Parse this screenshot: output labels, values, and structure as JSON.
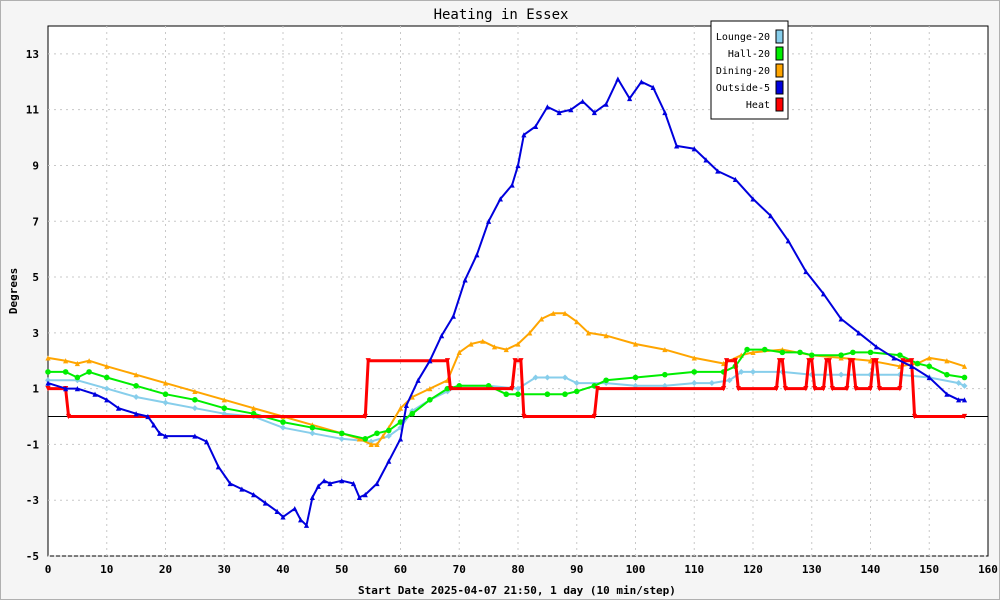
{
  "chart_data": {
    "type": "line",
    "title": "Heating in Essex",
    "xlabel": "Start Date 2025-04-07 21:50, 1 day (10 min/step)",
    "ylabel": "Degrees",
    "xlim": [
      0,
      160
    ],
    "ylim": [
      -5,
      14
    ],
    "xticks": [
      0,
      10,
      20,
      30,
      40,
      50,
      60,
      70,
      80,
      90,
      100,
      110,
      120,
      130,
      140,
      150,
      160
    ],
    "yticks": [
      -5,
      -3,
      -1,
      1,
      3,
      5,
      7,
      9,
      11,
      13
    ],
    "zero_line": 0,
    "grid": true,
    "legend_position": "top-right",
    "series": [
      {
        "name": "Lounge-20",
        "color": "#87ceeb",
        "marker": "diamond",
        "points": [
          [
            0,
            1.3
          ],
          [
            5,
            1.3
          ],
          [
            10,
            1.0
          ],
          [
            15,
            0.7
          ],
          [
            20,
            0.5
          ],
          [
            25,
            0.3
          ],
          [
            30,
            0.1
          ],
          [
            35,
            0.0
          ],
          [
            40,
            -0.4
          ],
          [
            45,
            -0.6
          ],
          [
            50,
            -0.8
          ],
          [
            55,
            -0.9
          ],
          [
            58,
            -0.7
          ],
          [
            60,
            -0.4
          ],
          [
            62,
            0.2
          ],
          [
            65,
            0.6
          ],
          [
            68,
            0.9
          ],
          [
            70,
            1.1
          ],
          [
            75,
            1.1
          ],
          [
            80,
            1.0
          ],
          [
            83,
            1.4
          ],
          [
            85,
            1.4
          ],
          [
            88,
            1.4
          ],
          [
            90,
            1.2
          ],
          [
            95,
            1.2
          ],
          [
            100,
            1.1
          ],
          [
            105,
            1.1
          ],
          [
            110,
            1.2
          ],
          [
            113,
            1.2
          ],
          [
            116,
            1.3
          ],
          [
            118,
            1.6
          ],
          [
            120,
            1.6
          ],
          [
            125,
            1.6
          ],
          [
            130,
            1.5
          ],
          [
            135,
            1.5
          ],
          [
            140,
            1.5
          ],
          [
            145,
            1.5
          ],
          [
            150,
            1.4
          ],
          [
            155,
            1.2
          ],
          [
            156,
            1.1
          ]
        ]
      },
      {
        "name": "Hall-20",
        "color": "#00ee00",
        "marker": "circle",
        "points": [
          [
            0,
            1.6
          ],
          [
            3,
            1.6
          ],
          [
            5,
            1.4
          ],
          [
            7,
            1.6
          ],
          [
            10,
            1.4
          ],
          [
            15,
            1.1
          ],
          [
            20,
            0.8
          ],
          [
            25,
            0.6
          ],
          [
            30,
            0.3
          ],
          [
            35,
            0.1
          ],
          [
            40,
            -0.2
          ],
          [
            45,
            -0.4
          ],
          [
            50,
            -0.6
          ],
          [
            54,
            -0.8
          ],
          [
            56,
            -0.6
          ],
          [
            58,
            -0.5
          ],
          [
            60,
            -0.2
          ],
          [
            62,
            0.1
          ],
          [
            65,
            0.6
          ],
          [
            68,
            1.0
          ],
          [
            70,
            1.1
          ],
          [
            75,
            1.1
          ],
          [
            78,
            0.8
          ],
          [
            80,
            0.8
          ],
          [
            85,
            0.8
          ],
          [
            88,
            0.8
          ],
          [
            90,
            0.9
          ],
          [
            93,
            1.1
          ],
          [
            95,
            1.3
          ],
          [
            100,
            1.4
          ],
          [
            105,
            1.5
          ],
          [
            110,
            1.6
          ],
          [
            115,
            1.6
          ],
          [
            117,
            1.8
          ],
          [
            119,
            2.4
          ],
          [
            122,
            2.4
          ],
          [
            125,
            2.3
          ],
          [
            128,
            2.3
          ],
          [
            130,
            2.2
          ],
          [
            135,
            2.2
          ],
          [
            137,
            2.3
          ],
          [
            140,
            2.3
          ],
          [
            145,
            2.2
          ],
          [
            148,
            1.9
          ],
          [
            150,
            1.8
          ],
          [
            153,
            1.5
          ],
          [
            156,
            1.4
          ]
        ]
      },
      {
        "name": "Dining-20",
        "color": "#ffa500",
        "marker": "triangle",
        "points": [
          [
            0,
            2.1
          ],
          [
            3,
            2.0
          ],
          [
            5,
            1.9
          ],
          [
            7,
            2.0
          ],
          [
            10,
            1.8
          ],
          [
            15,
            1.5
          ],
          [
            20,
            1.2
          ],
          [
            25,
            0.9
          ],
          [
            30,
            0.6
          ],
          [
            35,
            0.3
          ],
          [
            40,
            0.0
          ],
          [
            45,
            -0.3
          ],
          [
            50,
            -0.6
          ],
          [
            53,
            -0.8
          ],
          [
            55,
            -1.0
          ],
          [
            56,
            -1.0
          ],
          [
            57,
            -0.7
          ],
          [
            58,
            -0.4
          ],
          [
            60,
            0.3
          ],
          [
            62,
            0.7
          ],
          [
            65,
            1.0
          ],
          [
            68,
            1.3
          ],
          [
            70,
            2.3
          ],
          [
            72,
            2.6
          ],
          [
            74,
            2.7
          ],
          [
            76,
            2.5
          ],
          [
            78,
            2.4
          ],
          [
            80,
            2.6
          ],
          [
            82,
            3.0
          ],
          [
            84,
            3.5
          ],
          [
            86,
            3.7
          ],
          [
            88,
            3.7
          ],
          [
            90,
            3.4
          ],
          [
            92,
            3.0
          ],
          [
            95,
            2.9
          ],
          [
            100,
            2.6
          ],
          [
            105,
            2.4
          ],
          [
            110,
            2.1
          ],
          [
            115,
            1.9
          ],
          [
            118,
            2.2
          ],
          [
            120,
            2.3
          ],
          [
            125,
            2.4
          ],
          [
            130,
            2.2
          ],
          [
            135,
            2.1
          ],
          [
            140,
            2.0
          ],
          [
            145,
            1.8
          ],
          [
            148,
            1.9
          ],
          [
            150,
            2.1
          ],
          [
            153,
            2.0
          ],
          [
            156,
            1.8
          ]
        ]
      },
      {
        "name": "Outside-5",
        "color": "#0000dd",
        "marker": "triangle",
        "points": [
          [
            0,
            1.2
          ],
          [
            3,
            1.0
          ],
          [
            5,
            1.0
          ],
          [
            8,
            0.8
          ],
          [
            10,
            0.6
          ],
          [
            12,
            0.3
          ],
          [
            15,
            0.1
          ],
          [
            17,
            0.0
          ],
          [
            18,
            -0.3
          ],
          [
            19,
            -0.6
          ],
          [
            20,
            -0.7
          ],
          [
            25,
            -0.7
          ],
          [
            27,
            -0.9
          ],
          [
            29,
            -1.8
          ],
          [
            31,
            -2.4
          ],
          [
            33,
            -2.6
          ],
          [
            35,
            -2.8
          ],
          [
            37,
            -3.1
          ],
          [
            39,
            -3.4
          ],
          [
            40,
            -3.6
          ],
          [
            42,
            -3.3
          ],
          [
            43,
            -3.7
          ],
          [
            44,
            -3.9
          ],
          [
            45,
            -2.9
          ],
          [
            46,
            -2.5
          ],
          [
            47,
            -2.3
          ],
          [
            48,
            -2.4
          ],
          [
            50,
            -2.3
          ],
          [
            52,
            -2.4
          ],
          [
            53,
            -2.9
          ],
          [
            54,
            -2.8
          ],
          [
            56,
            -2.4
          ],
          [
            58,
            -1.6
          ],
          [
            60,
            -0.8
          ],
          [
            61,
            0.4
          ],
          [
            63,
            1.3
          ],
          [
            65,
            2.0
          ],
          [
            67,
            2.9
          ],
          [
            69,
            3.6
          ],
          [
            71,
            4.9
          ],
          [
            73,
            5.8
          ],
          [
            75,
            7.0
          ],
          [
            77,
            7.8
          ],
          [
            79,
            8.3
          ],
          [
            80,
            9.0
          ],
          [
            81,
            10.1
          ],
          [
            83,
            10.4
          ],
          [
            85,
            11.1
          ],
          [
            87,
            10.9
          ],
          [
            89,
            11.0
          ],
          [
            91,
            11.3
          ],
          [
            93,
            10.9
          ],
          [
            95,
            11.2
          ],
          [
            97,
            12.1
          ],
          [
            99,
            11.4
          ],
          [
            101,
            12.0
          ],
          [
            103,
            11.8
          ],
          [
            105,
            10.9
          ],
          [
            107,
            9.7
          ],
          [
            110,
            9.6
          ],
          [
            112,
            9.2
          ],
          [
            114,
            8.8
          ],
          [
            117,
            8.5
          ],
          [
            120,
            7.8
          ],
          [
            123,
            7.2
          ],
          [
            126,
            6.3
          ],
          [
            129,
            5.2
          ],
          [
            132,
            4.4
          ],
          [
            135,
            3.5
          ],
          [
            138,
            3.0
          ],
          [
            141,
            2.5
          ],
          [
            144,
            2.1
          ],
          [
            147,
            1.8
          ],
          [
            150,
            1.4
          ],
          [
            153,
            0.8
          ],
          [
            155,
            0.6
          ],
          [
            156,
            0.6
          ]
        ]
      },
      {
        "name": "Heat",
        "color": "#ff0000",
        "marker": "triangle-down",
        "points": [
          [
            0,
            1
          ],
          [
            3,
            1
          ],
          [
            3.5,
            0
          ],
          [
            54,
            0
          ],
          [
            54.5,
            2
          ],
          [
            68,
            2
          ],
          [
            68.5,
            1
          ],
          [
            79,
            1
          ],
          [
            79.5,
            2
          ],
          [
            80.5,
            2
          ],
          [
            81,
            0
          ],
          [
            93,
            0
          ],
          [
            93.5,
            1
          ],
          [
            115,
            1
          ],
          [
            115.5,
            2
          ],
          [
            117,
            2
          ],
          [
            117.5,
            1
          ],
          [
            124,
            1
          ],
          [
            124.5,
            2
          ],
          [
            125,
            2
          ],
          [
            125.5,
            1
          ],
          [
            129,
            1
          ],
          [
            129.5,
            2
          ],
          [
            130,
            2
          ],
          [
            130.5,
            1
          ],
          [
            132,
            1
          ],
          [
            132.5,
            2
          ],
          [
            133,
            2
          ],
          [
            133.5,
            1
          ],
          [
            136,
            1
          ],
          [
            136.5,
            2
          ],
          [
            137,
            2
          ],
          [
            137.5,
            1
          ],
          [
            140,
            1
          ],
          [
            140.5,
            2
          ],
          [
            141,
            2
          ],
          [
            141.5,
            1
          ],
          [
            145,
            1
          ],
          [
            145.5,
            2
          ],
          [
            147,
            2
          ],
          [
            147.5,
            0
          ],
          [
            156,
            0
          ]
        ]
      }
    ]
  }
}
